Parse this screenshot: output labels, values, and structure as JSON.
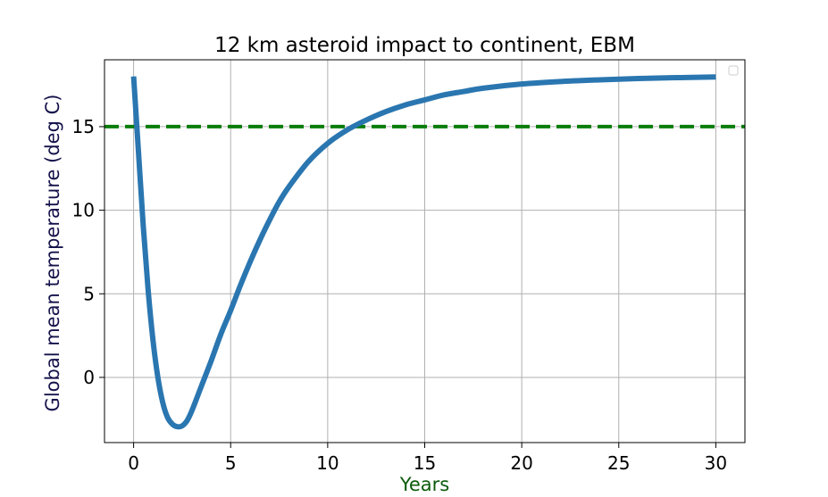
{
  "chart_data": {
    "type": "line",
    "title": "12 km asteroid impact to continent, EBM",
    "xlabel": "Years",
    "ylabel": "Global mean temperature (deg C)",
    "xlim": [
      -1.5,
      31.5
    ],
    "ylim": [
      -3.9,
      19.0
    ],
    "xticks": [
      0,
      5,
      10,
      15,
      20,
      25,
      30
    ],
    "yticks": [
      0,
      5,
      10,
      15
    ],
    "grid": true,
    "legend": "top-right (empty)",
    "series": [
      {
        "color": "#2a76b0",
        "x": [
          0,
          0.25,
          0.5,
          0.75,
          1.0,
          1.25,
          1.5,
          1.75,
          2.0,
          2.25,
          2.5,
          2.75,
          3.0,
          3.5,
          4.0,
          4.5,
          5.0,
          5.5,
          6.0,
          6.5,
          7.0,
          7.5,
          8.0,
          9.0,
          10.0,
          11.0,
          12.0,
          13.0,
          14.0,
          15.0,
          16.0,
          17.0,
          18.0,
          20.0,
          22.0,
          24.0,
          26.0,
          28.0,
          30.0
        ],
        "y": [
          18.0,
          13.5,
          9.0,
          5.2,
          2.2,
          0.0,
          -1.5,
          -2.4,
          -2.8,
          -2.95,
          -2.9,
          -2.6,
          -2.0,
          -0.5,
          1.0,
          2.6,
          4.0,
          5.5,
          6.9,
          8.2,
          9.4,
          10.5,
          11.4,
          12.9,
          14.0,
          14.8,
          15.4,
          15.9,
          16.3,
          16.6,
          16.9,
          17.1,
          17.3,
          17.55,
          17.7,
          17.8,
          17.88,
          17.93,
          17.97
        ]
      }
    ],
    "reference_lines": [
      {
        "y": 15,
        "style": "dashed",
        "color": "#0a7d0a"
      }
    ],
    "colors": {
      "xlabel": "#0b5b0b",
      "ylabel": "#14124a",
      "grid": "#b0b0b0"
    }
  }
}
